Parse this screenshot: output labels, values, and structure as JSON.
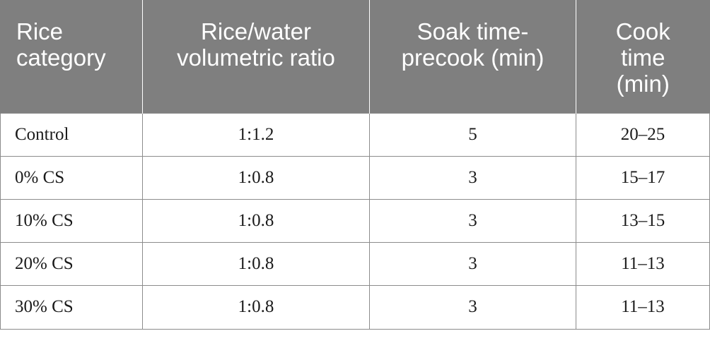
{
  "table": {
    "headers": [
      "Rice category",
      "Rice/water volumetric ratio",
      "Soak time-precook (min)",
      "Cook time (min)"
    ],
    "rows": [
      [
        "Control",
        "1:1.2",
        "5",
        "20–25"
      ],
      [
        "0% CS",
        "1:0.8",
        "3",
        "15–17"
      ],
      [
        "10% CS",
        "1:0.8",
        "3",
        "13–15"
      ],
      [
        "20% CS",
        "1:0.8",
        "3",
        "11–13"
      ],
      [
        "30% CS",
        "1:0.8",
        "3",
        "11–13"
      ]
    ]
  }
}
